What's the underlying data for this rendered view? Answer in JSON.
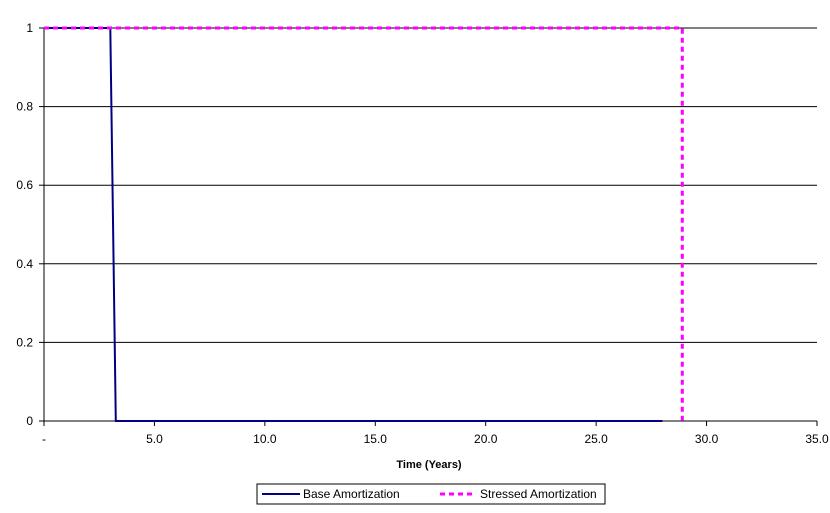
{
  "chart_data": {
    "type": "line",
    "title": "",
    "xlabel": "Time (Years)",
    "ylabel": "",
    "xlim": [
      0,
      35
    ],
    "ylim": [
      0,
      1
    ],
    "x_ticks": [
      0,
      5,
      10,
      15,
      20,
      25,
      30,
      35
    ],
    "x_tick_labels": [
      "-",
      "5.0",
      "10.0",
      "15.0",
      "20.0",
      "25.0",
      "30.0",
      "35.0"
    ],
    "y_ticks": [
      0,
      0.2,
      0.4,
      0.6,
      0.8,
      1
    ],
    "y_tick_labels": [
      "0",
      "0.2",
      "0.4",
      "0.6",
      "0.8",
      "1"
    ],
    "grid": "horizontal",
    "legend_position": "bottom",
    "series": [
      {
        "name": "Base Amortization",
        "color": "#000080",
        "style": "solid",
        "points": [
          [
            0,
            1
          ],
          [
            3.0,
            1
          ],
          [
            3.25,
            0
          ],
          [
            28.0,
            0
          ]
        ]
      },
      {
        "name": "Stressed Amortization",
        "color": "#FF00FF",
        "style": "dashed",
        "points": [
          [
            0,
            1
          ],
          [
            28.9,
            1
          ],
          [
            28.9,
            0
          ]
        ]
      }
    ]
  }
}
